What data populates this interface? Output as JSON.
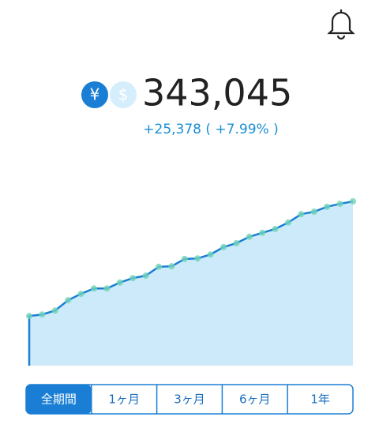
{
  "header": {
    "currency_yen": "¥",
    "currency_usd": "$",
    "balance": "343,045",
    "change": "+25,378 ( +7.99% )"
  },
  "tabs": [
    "全期間",
    "1ヶ月",
    "3ヶ月",
    "6ヶ月",
    "1年"
  ],
  "chart_data": {
    "type": "area",
    "color": "#1a7fd4",
    "fill": "#cdeafb",
    "marker_color": "#6fd3b6",
    "values": [
      101000,
      104000,
      112000,
      133000,
      146000,
      157000,
      157000,
      169000,
      178000,
      183000,
      201000,
      202000,
      217000,
      218000,
      226000,
      241000,
      249000,
      262000,
      270000,
      278000,
      291000,
      308000,
      313000,
      323000,
      329000,
      334000
    ],
    "ylim": [
      0,
      350000
    ]
  }
}
